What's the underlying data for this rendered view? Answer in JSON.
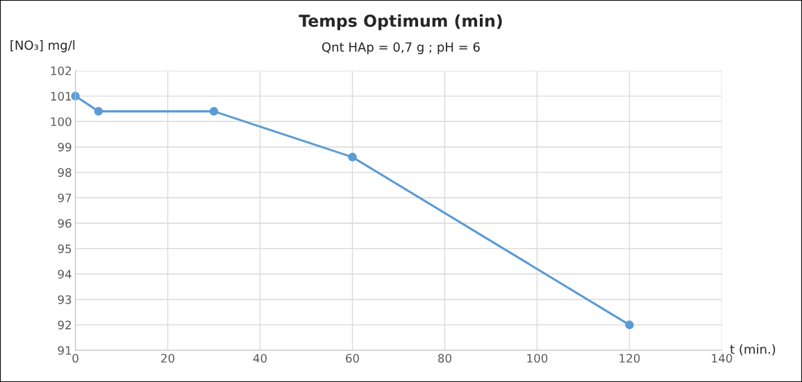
{
  "chart_data": {
    "type": "line",
    "title": "Temps Optimum (min)",
    "subtitle": "Qnt HAp = 0,7 g ; pH = 6",
    "ylabel": "[NO₃] mg/l",
    "xlabel": "t (min.)",
    "x": [
      0,
      5,
      30,
      60,
      120
    ],
    "series": [
      {
        "color": "#5b9bd5",
        "values": [
          101,
          100.4,
          100.4,
          98.6,
          92
        ]
      }
    ],
    "xlim": [
      0,
      140
    ],
    "xticks": [
      0,
      20,
      40,
      60,
      80,
      100,
      120,
      140
    ],
    "ylim": [
      91,
      102
    ],
    "yticks": [
      91,
      92,
      93,
      94,
      95,
      96,
      97,
      98,
      99,
      100,
      101,
      102
    ],
    "grid": true,
    "marker": "circle",
    "line_style": "solid",
    "legend": false
  }
}
